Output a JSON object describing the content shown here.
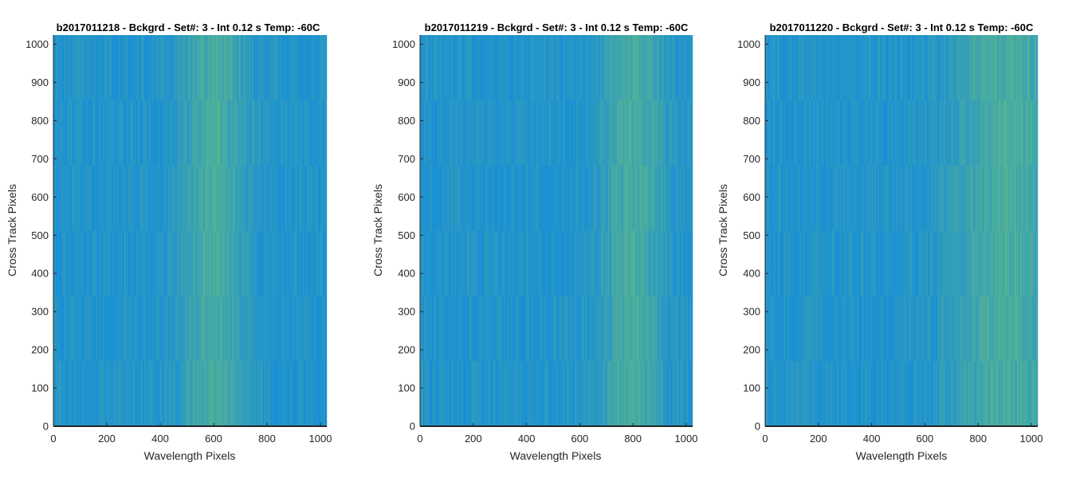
{
  "chart_data": [
    {
      "type": "heatmap",
      "title": "b2017011218 - Bckgrd - Set#: 3 - Int 0.12 s Temp: -60C",
      "xlabel": "Wavelength Pixels",
      "ylabel": "Cross Track Pixels",
      "xlim": [
        0,
        1024
      ],
      "ylim": [
        0,
        1024
      ],
      "xticks": [
        0,
        200,
        400,
        600,
        800,
        1000
      ],
      "yticks": [
        0,
        100,
        200,
        300,
        400,
        500,
        600,
        700,
        800,
        900,
        1000
      ],
      "colormap": "parula",
      "bright_band_center_x": 600,
      "bright_band_width_x": 120,
      "base_color": "#1a8fd6",
      "highlight_color": "#6cc17a"
    },
    {
      "type": "heatmap",
      "title": "b2017011219 - Bckgrd - Set#: 3 - Int 0.12 s Temp: -60C",
      "xlabel": "Wavelength Pixels",
      "ylabel": "Cross Track Pixels",
      "xlim": [
        0,
        1024
      ],
      "ylim": [
        0,
        1024
      ],
      "xticks": [
        0,
        200,
        400,
        600,
        800,
        1000
      ],
      "yticks": [
        0,
        100,
        200,
        300,
        400,
        500,
        600,
        700,
        800,
        900,
        1000
      ],
      "colormap": "parula",
      "bright_band_center_x": 800,
      "bright_band_width_x": 110,
      "base_color": "#1a8fd6",
      "highlight_color": "#6cc17a"
    },
    {
      "type": "heatmap",
      "title": "b2017011220 - Bckgrd - Set#: 3 - Int 0.12 s Temp: -60C",
      "xlabel": "Wavelength Pixels",
      "ylabel": "Cross Track Pixels",
      "xlim": [
        0,
        1024
      ],
      "ylim": [
        0,
        1024
      ],
      "xticks": [
        0,
        200,
        400,
        600,
        800,
        1000
      ],
      "yticks": [
        0,
        100,
        200,
        300,
        400,
        500,
        600,
        700,
        800,
        900,
        1000
      ],
      "colormap": "parula",
      "bright_band_center_x": 900,
      "bright_band_width_x": 200,
      "base_color": "#1a8fd6",
      "highlight_color": "#6cc17a"
    }
  ]
}
